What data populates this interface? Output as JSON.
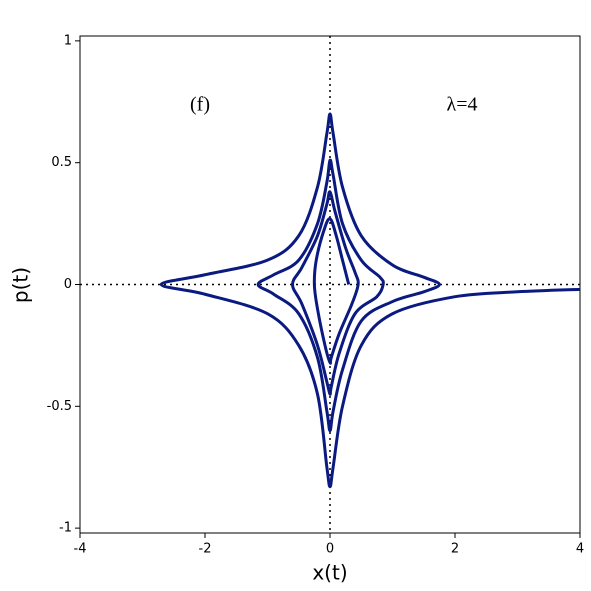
{
  "chart_data": {
    "type": "line",
    "x_label": "x(t)",
    "y_label": "p(t)",
    "annotations": [
      "(f)",
      "λ=4"
    ],
    "xlim": [
      -4,
      4
    ],
    "ylim": [
      -1.02,
      1.02
    ],
    "xticks": [
      -4,
      -2,
      0,
      2,
      4
    ],
    "yticks": [
      -1,
      -0.5,
      0,
      0.5,
      1
    ],
    "zero_lines": true,
    "color": "#0a1a80",
    "x": [
      4,
      3,
      2,
      1,
      0.5,
      0.2,
      0.05,
      0,
      -0.05,
      -0.2,
      -0.5,
      -1,
      -2,
      -2.7,
      -2,
      -1,
      -0.5,
      -0.2,
      -0.05,
      0,
      0.05,
      0.2,
      0.5,
      1,
      1.5,
      1.75,
      1.5,
      1,
      0.5,
      0.2,
      0.05,
      0,
      -0.05,
      -0.2,
      -0.5,
      -0.9,
      -1.15,
      -0.9,
      -0.5,
      -0.2,
      -0.05,
      0,
      0.05,
      0.2,
      0.5,
      0.8,
      0.85,
      0.75,
      0.4,
      0.15,
      0.02,
      0,
      -0.05,
      -0.2,
      -0.45,
      -0.6,
      -0.45,
      -0.2,
      -0.05,
      0,
      0.08,
      0.25,
      0.4,
      0.45,
      0.35,
      0.15,
      0.02,
      0,
      -0.08,
      -0.2,
      -0.25,
      -0.22,
      -0.1,
      0,
      0.1,
      0.2,
      0.3
    ],
    "values": [
      -0.02,
      -0.03,
      -0.05,
      -0.12,
      -0.25,
      -0.5,
      -0.75,
      -0.83,
      -0.75,
      -0.45,
      -0.25,
      -0.12,
      -0.04,
      0,
      0.04,
      0.1,
      0.2,
      0.4,
      0.62,
      0.7,
      0.62,
      0.4,
      0.2,
      0.08,
      0.03,
      0,
      -0.03,
      -0.07,
      -0.15,
      -0.35,
      -0.52,
      -0.6,
      -0.52,
      -0.3,
      -0.12,
      -0.04,
      0,
      0.04,
      0.1,
      0.25,
      0.42,
      0.51,
      0.45,
      0.25,
      0.1,
      0.03,
      0,
      -0.05,
      -0.12,
      -0.28,
      -0.42,
      -0.45,
      -0.4,
      -0.25,
      -0.08,
      0,
      0.07,
      0.2,
      0.33,
      0.38,
      0.3,
      0.15,
      0.05,
      0,
      -0.08,
      -0.2,
      -0.3,
      -0.32,
      -0.25,
      -0.1,
      0,
      0.1,
      0.22,
      0.27,
      0.2,
      0.1,
      0
    ]
  }
}
